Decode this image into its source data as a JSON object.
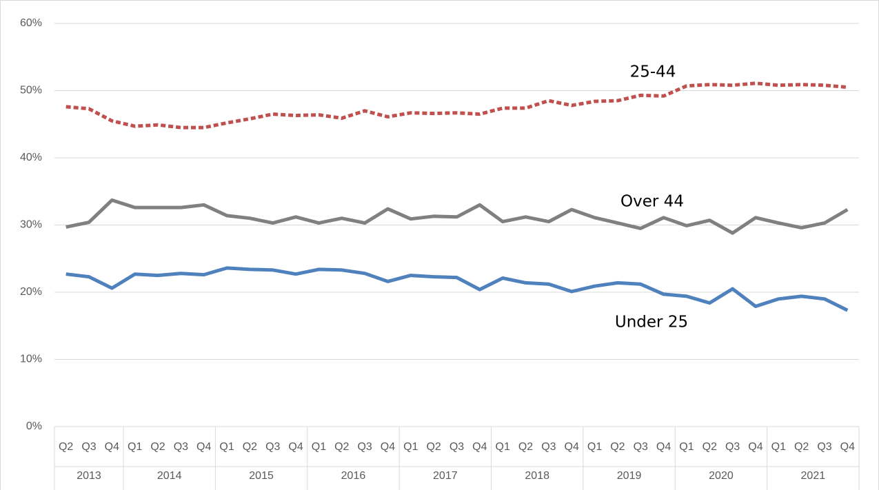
{
  "chart_data": {
    "type": "line",
    "category_groups": [
      {
        "name": "2013",
        "categories": [
          "Q2",
          "Q3",
          "Q4"
        ]
      },
      {
        "name": "2014",
        "categories": [
          "Q1",
          "Q2",
          "Q3",
          "Q4"
        ]
      },
      {
        "name": "2015",
        "categories": [
          "Q1",
          "Q2",
          "Q3",
          "Q4"
        ]
      },
      {
        "name": "2016",
        "categories": [
          "Q1",
          "Q2",
          "Q3",
          "Q4"
        ]
      },
      {
        "name": "2017",
        "categories": [
          "Q1",
          "Q2",
          "Q3",
          "Q4"
        ]
      },
      {
        "name": "2018",
        "categories": [
          "Q1",
          "Q2",
          "Q3",
          "Q4"
        ]
      },
      {
        "name": "2019",
        "categories": [
          "Q1",
          "Q2",
          "Q3",
          "Q4"
        ]
      },
      {
        "name": "2020",
        "categories": [
          "Q1",
          "Q2",
          "Q3",
          "Q4"
        ]
      },
      {
        "name": "2021",
        "categories": [
          "Q1",
          "Q2",
          "Q3",
          "Q4"
        ]
      }
    ],
    "series": [
      {
        "name": "25-44",
        "color": "#c0504d",
        "line_style": "dashed",
        "values": [
          47.6,
          47.3,
          45.5,
          44.7,
          44.9,
          44.5,
          44.5,
          45.2,
          45.8,
          46.5,
          46.3,
          46.4,
          45.9,
          47.0,
          46.1,
          46.7,
          46.6,
          46.7,
          46.5,
          47.4,
          47.4,
          48.5,
          47.8,
          48.4,
          48.5,
          49.3,
          49.2,
          50.7,
          50.9,
          50.8,
          51.1,
          50.8,
          50.9,
          50.8,
          50.5
        ]
      },
      {
        "name": "Over 44",
        "color": "#808080",
        "line_style": "solid",
        "values": [
          29.7,
          30.4,
          33.7,
          32.6,
          32.6,
          32.6,
          33.0,
          31.4,
          31.0,
          30.3,
          31.2,
          30.3,
          31.0,
          30.3,
          32.4,
          30.9,
          31.3,
          31.2,
          33.0,
          30.5,
          31.2,
          30.5,
          32.3,
          31.1,
          30.3,
          29.5,
          31.1,
          29.9,
          30.7,
          28.8,
          31.1,
          30.3,
          29.6,
          30.3,
          32.3
        ]
      },
      {
        "name": "Under 25",
        "color": "#4f81bd",
        "line_style": "solid",
        "values": [
          22.7,
          22.3,
          20.6,
          22.7,
          22.5,
          22.8,
          22.6,
          23.6,
          23.4,
          23.3,
          22.7,
          23.4,
          23.3,
          22.8,
          21.6,
          22.5,
          22.3,
          22.2,
          20.4,
          22.1,
          21.4,
          21.2,
          20.1,
          20.9,
          21.4,
          21.2,
          19.7,
          19.4,
          18.4,
          20.5,
          17.9,
          19.0,
          19.4,
          19.0,
          17.3
        ]
      }
    ],
    "ylim": [
      0,
      60
    ],
    "yticks": [
      {
        "value": 0,
        "label": "0%"
      },
      {
        "value": 10,
        "label": "10%"
      },
      {
        "value": 20,
        "label": "20%"
      },
      {
        "value": 30,
        "label": "30%"
      },
      {
        "value": 40,
        "label": "40%"
      },
      {
        "value": 50,
        "label": "50%"
      },
      {
        "value": 60,
        "label": "60%"
      }
    ],
    "grid": true
  }
}
